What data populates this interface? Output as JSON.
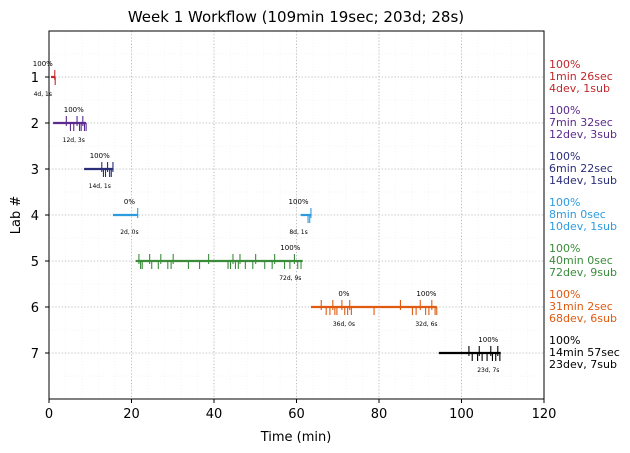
{
  "chart_data": {
    "type": "timeline",
    "title": "Week 1 Workflow (109min 19sec; 203d; 28s)",
    "xlabel": "Time (min)",
    "ylabel": "Lab #",
    "xlim": [
      0,
      120
    ],
    "ylim": [
      0,
      8
    ],
    "xticks": [
      "0",
      "20",
      "40",
      "60",
      "80",
      "100",
      "120"
    ],
    "grid": true,
    "labs": [
      {
        "lab": "1",
        "color": "#c0272d",
        "segments": [
          {
            "start": 0.5,
            "end": 1.5
          }
        ],
        "marks": [
          1.4,
          1.5
        ],
        "ann": [
          {
            "x": -1.5,
            "pct": "100%",
            "sub": "4d, 1s"
          }
        ],
        "summary": [
          "100%",
          "1min 26sec",
          "4dev, 1sub"
        ]
      },
      {
        "lab": "2",
        "color": "#5b2a8c",
        "segments": [
          {
            "start": 1.0,
            "end": 9.0
          }
        ],
        "marks": [
          4.2,
          5.2,
          6.0,
          6.8,
          7.4,
          7.8,
          8.2,
          8.6,
          9.0
        ],
        "ann": [
          {
            "x": 6.0,
            "pct": "100%",
            "sub": "12d, 3s"
          }
        ],
        "summary": [
          "100%",
          "7min 32sec",
          "12dev, 3sub"
        ]
      },
      {
        "lab": "3",
        "color": "#2a2e7a",
        "segments": [
          {
            "start": 8.5,
            "end": 15.5
          }
        ],
        "marks": [
          12.8,
          13.2,
          13.7,
          14.2,
          14.7,
          15.1,
          15.5
        ],
        "ann": [
          {
            "x": 12.3,
            "pct": "100%",
            "sub": "14d, 1s"
          }
        ],
        "summary": [
          "100%",
          "6min 22sec",
          "14dev, 1sub"
        ]
      },
      {
        "lab": "4",
        "color": "#2e9be0",
        "segments": [
          {
            "start": 15.5,
            "end": 21.5
          },
          {
            "start": 61.0,
            "end": 63.5
          }
        ],
        "marks": [
          21.5,
          62.8,
          63.2,
          63.5
        ],
        "ann": [
          {
            "x": 19.5,
            "pct": "0%",
            "sub": "2d, 0s"
          },
          {
            "x": 60.5,
            "pct": "100%",
            "sub": "8d, 1s"
          }
        ],
        "summary": [
          "100%",
          "8min 0sec",
          "10dev, 1sub"
        ]
      },
      {
        "lab": "5",
        "color": "#3a8c3a",
        "segments": [
          {
            "start": 21.0,
            "end": 61.5
          }
        ],
        "marks": [
          21.8,
          22.2,
          22.6,
          24.4,
          24.9,
          26.5,
          27.1,
          28.8,
          29.6,
          30.1,
          33.8,
          36.5,
          38.7,
          43.4,
          44.0,
          44.6,
          45.2,
          45.9,
          46.3,
          47.6,
          49.4,
          50.1,
          52.3,
          54.1,
          54.7,
          57.1,
          58.4,
          59.5,
          60.3,
          61.1
        ],
        "ann": [
          {
            "x": 58.5,
            "pct": "100%",
            "sub": "72d, 9s"
          }
        ],
        "summary": [
          "100%",
          "40min 0sec",
          "72dev, 9sub"
        ]
      },
      {
        "lab": "6",
        "color": "#e05a10",
        "segments": [
          {
            "start": 63.5,
            "end": 94.0
          }
        ],
        "marks": [
          66.0,
          67.2,
          68.1,
          68.8,
          69.3,
          69.8,
          71.0,
          71.7,
          72.4,
          72.9,
          73.3,
          78.8,
          85.2,
          88.1,
          89.0,
          90.0,
          91.3,
          92.1,
          92.8,
          93.6,
          94.0
        ],
        "ann": [
          {
            "x": 71.5,
            "pct": "0%",
            "sub": "36d, 0s"
          },
          {
            "x": 91.5,
            "pct": "100%",
            "sub": "32d, 6s"
          }
        ],
        "summary": [
          "100%",
          "31min 2sec",
          "68dev, 6sub"
        ]
      },
      {
        "lab": "7",
        "color": "#000000",
        "segments": [
          {
            "start": 94.5,
            "end": 109.5
          }
        ],
        "marks": [
          101.8,
          102.6,
          103.9,
          104.3,
          105.0,
          106.2,
          107.1,
          107.5,
          108.3,
          108.8,
          109.3
        ],
        "ann": [
          {
            "x": 106.5,
            "pct": "100%",
            "sub": "23d, 7s"
          }
        ],
        "summary": [
          "100%",
          "14min 57sec",
          "23dev, 7sub"
        ]
      }
    ]
  }
}
